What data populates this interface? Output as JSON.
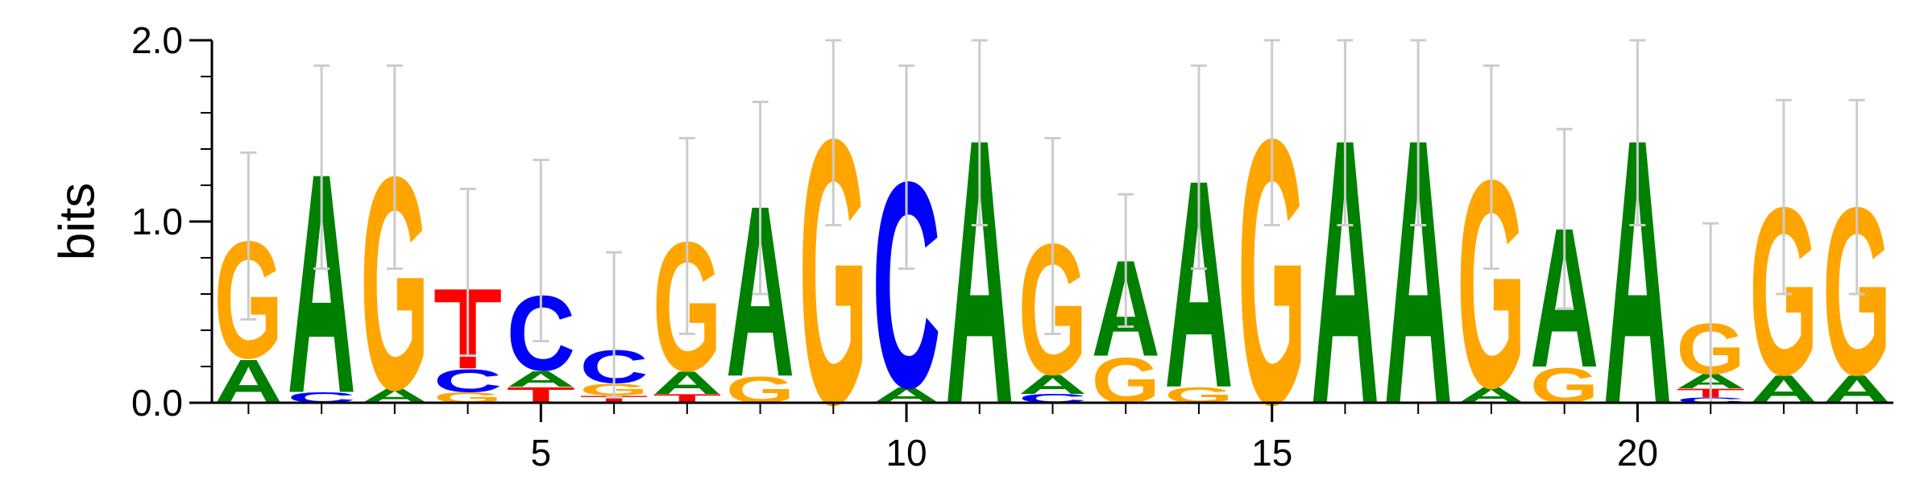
{
  "chart_data": {
    "type": "sequence-logo",
    "ylabel": "bits",
    "ylim": [
      0,
      2
    ],
    "yticks": [
      {
        "value": 0,
        "label": "0.0"
      },
      {
        "value": 1,
        "label": "1.0"
      },
      {
        "value": 2,
        "label": "2.0"
      }
    ],
    "xlim": [
      0.5,
      23.5
    ],
    "xticks": [
      {
        "value": 5,
        "label": "5"
      },
      {
        "value": 10,
        "label": "10"
      },
      {
        "value": 15,
        "label": "15"
      },
      {
        "value": 20,
        "label": "20"
      }
    ],
    "colors": {
      "A": "#008000",
      "C": "#0000ff",
      "G": "#ffa500",
      "T": "#ff0000",
      "error": "#cccccc"
    },
    "positions": [
      {
        "pos": 1,
        "letters": [
          {
            "base": "A",
            "height": 0.25
          },
          {
            "base": "G",
            "height": 0.67
          }
        ],
        "error": [
          0.46,
          1.38
        ]
      },
      {
        "pos": 2,
        "letters": [
          {
            "base": "C",
            "height": 0.06
          },
          {
            "base": "A",
            "height": 1.26
          }
        ],
        "error": [
          0.74,
          1.86
        ]
      },
      {
        "pos": 3,
        "letters": [
          {
            "base": "A",
            "height": 0.08
          },
          {
            "base": "G",
            "height": 1.22
          }
        ],
        "error": [
          0.74,
          1.86
        ]
      },
      {
        "pos": 4,
        "letters": [
          {
            "base": "G",
            "height": 0.06
          },
          {
            "base": "C",
            "height": 0.13
          },
          {
            "base": "T",
            "height": 0.46
          }
        ],
        "error": [
          0.26,
          1.18
        ]
      },
      {
        "pos": 5,
        "letters": [
          {
            "base": "T",
            "height": 0.09
          },
          {
            "base": "A",
            "height": 0.09
          },
          {
            "base": "C",
            "height": 0.43
          }
        ],
        "error": [
          0.34,
          1.34
        ]
      },
      {
        "pos": 6,
        "letters": [
          {
            "base": "T",
            "height": 0.04
          },
          {
            "base": "G",
            "height": 0.07
          },
          {
            "base": "C",
            "height": 0.19
          }
        ],
        "error": [
          0.03,
          0.83
        ]
      },
      {
        "pos": 7,
        "letters": [
          {
            "base": "T",
            "height": 0.05
          },
          {
            "base": "A",
            "height": 0.13
          },
          {
            "base": "G",
            "height": 0.74
          }
        ],
        "error": [
          0.38,
          1.46
        ]
      },
      {
        "pos": 8,
        "letters": [
          {
            "base": "G",
            "height": 0.15
          },
          {
            "base": "A",
            "height": 0.98
          }
        ],
        "error": [
          0.6,
          1.66
        ]
      },
      {
        "pos": 9,
        "letters": [
          {
            "base": "G",
            "height": 1.52
          }
        ],
        "error": [
          0.98,
          2.0
        ]
      },
      {
        "pos": 10,
        "letters": [
          {
            "base": "A",
            "height": 0.09
          },
          {
            "base": "C",
            "height": 1.18
          }
        ],
        "error": [
          0.74,
          1.86
        ]
      },
      {
        "pos": 11,
        "letters": [
          {
            "base": "A",
            "height": 1.52
          }
        ],
        "error": [
          0.98,
          2.0
        ]
      },
      {
        "pos": 12,
        "letters": [
          {
            "base": "C",
            "height": 0.05
          },
          {
            "base": "A",
            "height": 0.11
          },
          {
            "base": "G",
            "height": 0.75
          }
        ],
        "error": [
          0.38,
          1.46
        ]
      },
      {
        "pos": 13,
        "letters": [
          {
            "base": "G",
            "height": 0.26
          },
          {
            "base": "A",
            "height": 0.55
          }
        ],
        "error": [
          0.42,
          1.15
        ]
      },
      {
        "pos": 14,
        "letters": [
          {
            "base": "G",
            "height": 0.09
          },
          {
            "base": "A",
            "height": 1.19
          }
        ],
        "error": [
          0.74,
          1.86
        ]
      },
      {
        "pos": 15,
        "letters": [
          {
            "base": "G",
            "height": 1.52
          }
        ],
        "error": [
          0.98,
          2.0
        ]
      },
      {
        "pos": 16,
        "letters": [
          {
            "base": "A",
            "height": 1.52
          }
        ],
        "error": [
          0.98,
          2.0
        ]
      },
      {
        "pos": 17,
        "letters": [
          {
            "base": "A",
            "height": 1.52
          }
        ],
        "error": [
          0.98,
          2.0
        ]
      },
      {
        "pos": 18,
        "letters": [
          {
            "base": "A",
            "height": 0.09
          },
          {
            "base": "G",
            "height": 1.19
          }
        ],
        "error": [
          0.74,
          1.86
        ]
      },
      {
        "pos": 19,
        "letters": [
          {
            "base": "G",
            "height": 0.2
          },
          {
            "base": "A",
            "height": 0.8
          }
        ],
        "error": [
          0.52,
          1.51
        ]
      },
      {
        "pos": 20,
        "letters": [
          {
            "base": "A",
            "height": 1.52
          }
        ],
        "error": [
          0.98,
          2.0
        ]
      },
      {
        "pos": 21,
        "letters": [
          {
            "base": "C",
            "height": 0.03
          },
          {
            "base": "T",
            "height": 0.05
          },
          {
            "base": "A",
            "height": 0.08
          },
          {
            "base": "G",
            "height": 0.29
          }
        ],
        "error": [
          0.0,
          0.99
        ]
      },
      {
        "pos": 22,
        "letters": [
          {
            "base": "A",
            "height": 0.16
          },
          {
            "base": "G",
            "height": 0.96
          }
        ],
        "error": [
          0.6,
          1.67
        ]
      },
      {
        "pos": 23,
        "letters": [
          {
            "base": "A",
            "height": 0.16
          },
          {
            "base": "G",
            "height": 0.96
          }
        ],
        "error": [
          0.6,
          1.67
        ]
      }
    ]
  }
}
